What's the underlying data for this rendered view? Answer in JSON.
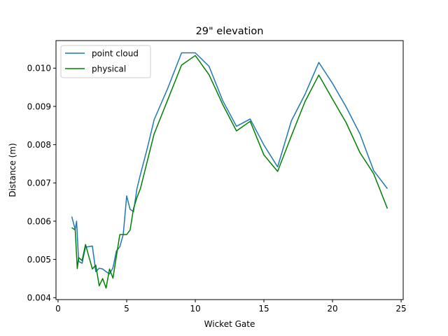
{
  "chart_data": {
    "type": "line",
    "title": "29\" elevation",
    "xlabel": "Wicket Gate",
    "ylabel": "Distance (m)",
    "xlim": [
      -0.15,
      25.15
    ],
    "ylim": [
      0.00395,
      0.01072
    ],
    "xticks": [
      0,
      5,
      10,
      15,
      20,
      25
    ],
    "xtick_labels": [
      "0",
      "5",
      "10",
      "15",
      "20",
      "25"
    ],
    "yticks": [
      0.004,
      0.005,
      0.006,
      0.007,
      0.008,
      0.009,
      0.01
    ],
    "ytick_labels": [
      "0.004",
      "0.005",
      "0.006",
      "0.007",
      "0.008",
      "0.009",
      "0.010"
    ],
    "grid": false,
    "legend_position": "top-left",
    "series": [
      {
        "name": "point cloud",
        "color": "#1f77b4",
        "x": [
          1.0,
          1.25,
          1.35,
          1.5,
          1.75,
          2.0,
          2.5,
          2.75,
          3.0,
          3.25,
          3.5,
          3.75,
          4.0,
          4.25,
          4.5,
          4.75,
          5.0,
          5.25,
          5.5,
          5.75,
          6.0,
          6.5,
          7.0,
          8.0,
          9.0,
          10.0,
          11.0,
          12.0,
          13.0,
          14.0,
          15.0,
          16.0,
          17.0,
          18.0,
          19.0,
          20.0,
          21.0,
          22.0,
          23.0,
          24.0
        ],
        "values": [
          0.00612,
          0.00578,
          0.006,
          0.00495,
          0.0049,
          0.00532,
          0.00535,
          0.00468,
          0.00477,
          0.00475,
          0.00468,
          0.00462,
          0.00478,
          0.00522,
          0.00533,
          0.00565,
          0.00666,
          0.00631,
          0.00625,
          0.00685,
          0.00722,
          0.0079,
          0.00865,
          0.00948,
          0.0104,
          0.0104,
          0.01005,
          0.00915,
          0.00848,
          0.00867,
          0.00799,
          0.00742,
          0.00862,
          0.00932,
          0.01015,
          0.0096,
          0.00898,
          0.00828,
          0.00732,
          0.00685
        ]
      },
      {
        "name": "physical",
        "color": "#008000",
        "x": [
          1.0,
          1.25,
          1.4,
          1.5,
          1.75,
          2.0,
          2.5,
          2.75,
          3.0,
          3.25,
          3.5,
          3.75,
          4.0,
          4.5,
          5.0,
          5.25,
          5.5,
          5.75,
          6.0,
          7.0,
          8.0,
          9.0,
          10.0,
          11.0,
          12.0,
          13.0,
          14.0,
          15.0,
          16.0,
          17.0,
          18.0,
          19.0,
          20.0,
          21.0,
          22.0,
          23.0,
          24.0
        ],
        "values": [
          0.00583,
          0.00577,
          0.00476,
          0.00505,
          0.00497,
          0.00539,
          0.00475,
          0.00485,
          0.00431,
          0.0045,
          0.00425,
          0.00475,
          0.00451,
          0.00565,
          0.00565,
          0.00577,
          0.00633,
          0.00662,
          0.00685,
          0.00828,
          0.00918,
          0.01008,
          0.01033,
          0.00983,
          0.00905,
          0.00836,
          0.00861,
          0.00773,
          0.0073,
          0.00823,
          0.00913,
          0.00982,
          0.00919,
          0.00857,
          0.00779,
          0.00724,
          0.00633
        ]
      }
    ]
  }
}
